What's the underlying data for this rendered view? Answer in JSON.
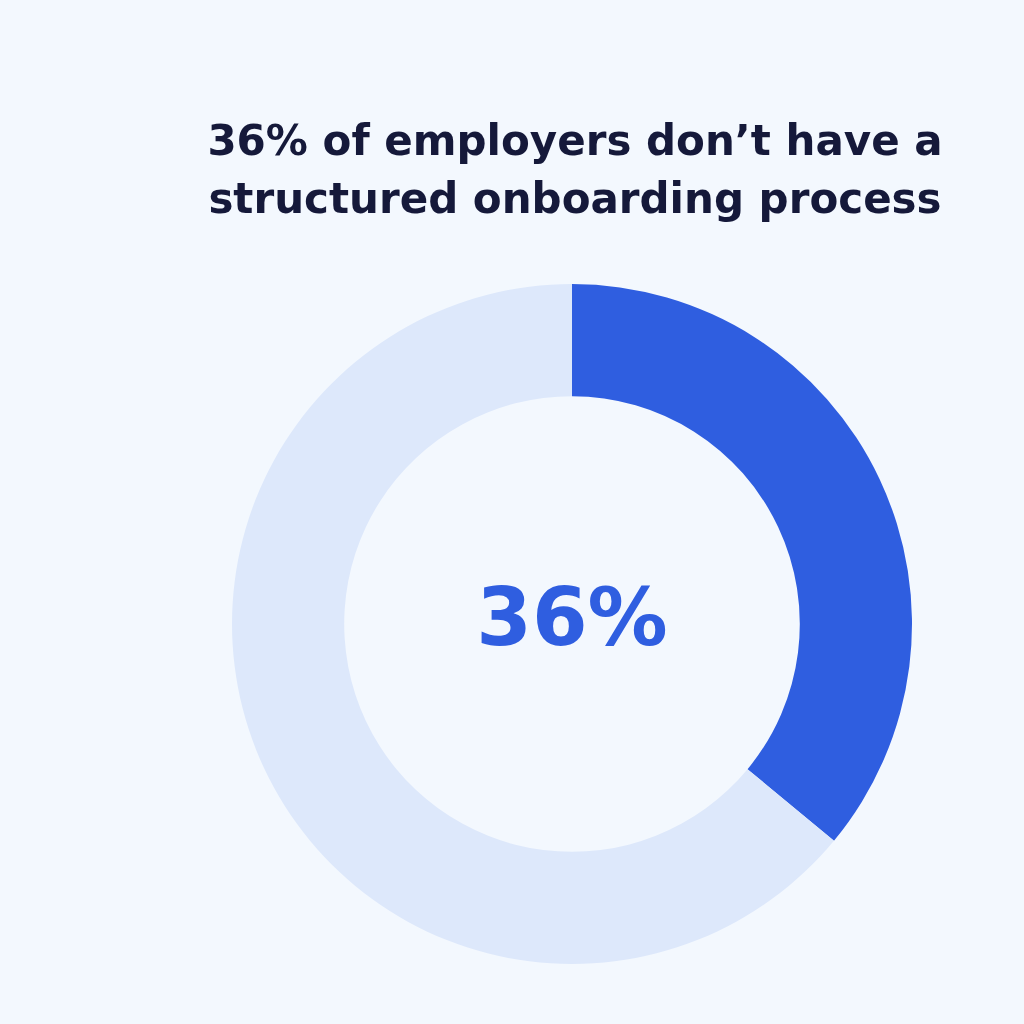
{
  "chart_data": {
    "type": "donut",
    "title": "36% of employers don’t have a structured onboarding process",
    "categories": [
      null,
      null
    ],
    "values": [
      36,
      64
    ],
    "colors": [
      "#2f5ee0",
      "#dde8fb"
    ],
    "value_labels": [
      "36%",
      null
    ],
    "legend": false
  }
}
